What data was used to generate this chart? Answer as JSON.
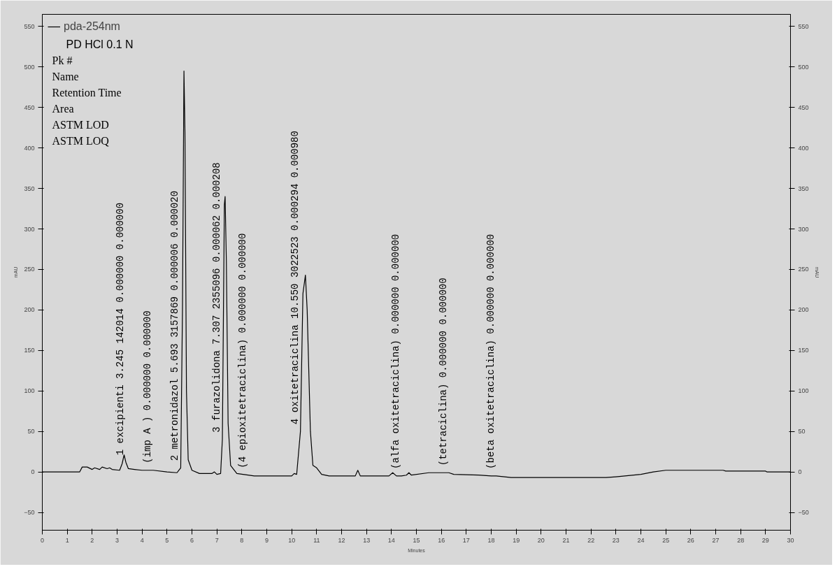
{
  "chart_data": {
    "type": "line",
    "xlabel": "Minutes",
    "ylabel": "mAU",
    "y2label": "mAU",
    "xlim": [
      0,
      30
    ],
    "ylim": [
      -72,
      565
    ],
    "y2lim": [
      -72,
      565
    ],
    "xticks": [
      0,
      1,
      2,
      3,
      4,
      5,
      6,
      7,
      8,
      9,
      10,
      11,
      12,
      13,
      14,
      15,
      16,
      17,
      18,
      19,
      20,
      21,
      22,
      23,
      24,
      25,
      26,
      27,
      28,
      29,
      30
    ],
    "yticks": [
      -50,
      0,
      50,
      100,
      150,
      200,
      250,
      300,
      350,
      400,
      450,
      500,
      550
    ],
    "y2ticks": [
      -50,
      0,
      50,
      100,
      150,
      200,
      250,
      300,
      350,
      400,
      450,
      500,
      550
    ],
    "grid": false,
    "legend": "top left",
    "marker": "none",
    "line_style": "solid",
    "series": [
      {
        "name": "pda-254nm",
        "color": "#000000",
        "x": [
          0,
          1.5,
          1.6,
          1.8,
          2.0,
          2.1,
          2.3,
          2.4,
          2.6,
          2.7,
          2.8,
          3.1,
          3.2,
          3.28,
          3.35,
          3.45,
          3.7,
          4.0,
          4.45,
          5.0,
          5.4,
          5.55,
          5.62,
          5.68,
          5.72,
          5.78,
          5.85,
          6.0,
          6.3,
          6.8,
          6.9,
          7.0,
          7.15,
          7.22,
          7.3,
          7.33,
          7.38,
          7.45,
          7.55,
          7.8,
          8.25,
          8.5,
          10.0,
          10.1,
          10.2,
          10.35,
          10.45,
          10.55,
          10.62,
          10.75,
          10.85,
          11.0,
          11.2,
          11.5,
          12.55,
          12.65,
          12.75,
          13.9,
          14.05,
          14.2,
          14.4,
          14.6,
          14.7,
          14.8,
          15.5,
          16.3,
          16.5,
          17.5,
          18.0,
          18.2,
          18.8,
          22.6,
          23.0,
          24.0,
          24.5,
          25.0,
          27.3,
          27.4,
          29.0,
          29.05,
          30.0
        ],
        "values": [
          0,
          0,
          6,
          6,
          3,
          5,
          3,
          6,
          4,
          5,
          3,
          2,
          10,
          21,
          12,
          4,
          3,
          2,
          2,
          0,
          -1,
          5,
          200,
          495,
          420,
          100,
          15,
          2,
          -2,
          -2,
          0,
          -3,
          -2,
          40,
          330,
          340,
          260,
          60,
          8,
          -2,
          -4,
          -5,
          -5,
          -2,
          -3,
          50,
          220,
          243,
          200,
          50,
          8,
          5,
          -3,
          -5,
          -5,
          2,
          -5,
          -5,
          -1,
          -5,
          -5,
          -4,
          -1,
          -4,
          -1,
          -1,
          -3,
          -4,
          -5,
          -5,
          -7,
          -7,
          -6,
          -3,
          0,
          2,
          2,
          1,
          1,
          0,
          0
        ]
      }
    ],
    "annotations": [
      "PD HCl 0.1 N",
      "Pk #",
      "Name",
      "Retention Time",
      "Area",
      "ASTM LOD",
      "ASTM LOQ",
      {
        "text": "1  excipienti  3.245  142014  0.000000  0.000000",
        "x": 3.35,
        "y": 12
      },
      {
        "text": "(imp A )     0.000000  0.000000",
        "x": 4.45,
        "y": 2
      },
      {
        "text": "2  metronidazol  5.693  3157869  0.000006  0.000020",
        "x": 5.55,
        "y": 5
      },
      {
        "text": "3  furazolidona  7.307  2355096  0.000062  0.000208",
        "x": 7.22,
        "y": 40
      },
      {
        "text": "(4 epioxitetraciclina)     0.000000  0.000000",
        "x": 8.25,
        "y": -4
      },
      {
        "text": "4  oxitetraciclina  10.550  3022523  0.000294  0.000980",
        "x": 10.35,
        "y": 50
      },
      {
        "text": "(alfa oxitetraciclina)     0.000000  0.000000",
        "x": 14.4,
        "y": -5
      },
      {
        "text": "(tetraciclina)      0.000000  0.000000",
        "x": 16.3,
        "y": -1
      },
      {
        "text": "(beta oxitetraciclina)     0.000000  0.000000",
        "x": 18.2,
        "y": -5
      }
    ]
  }
}
